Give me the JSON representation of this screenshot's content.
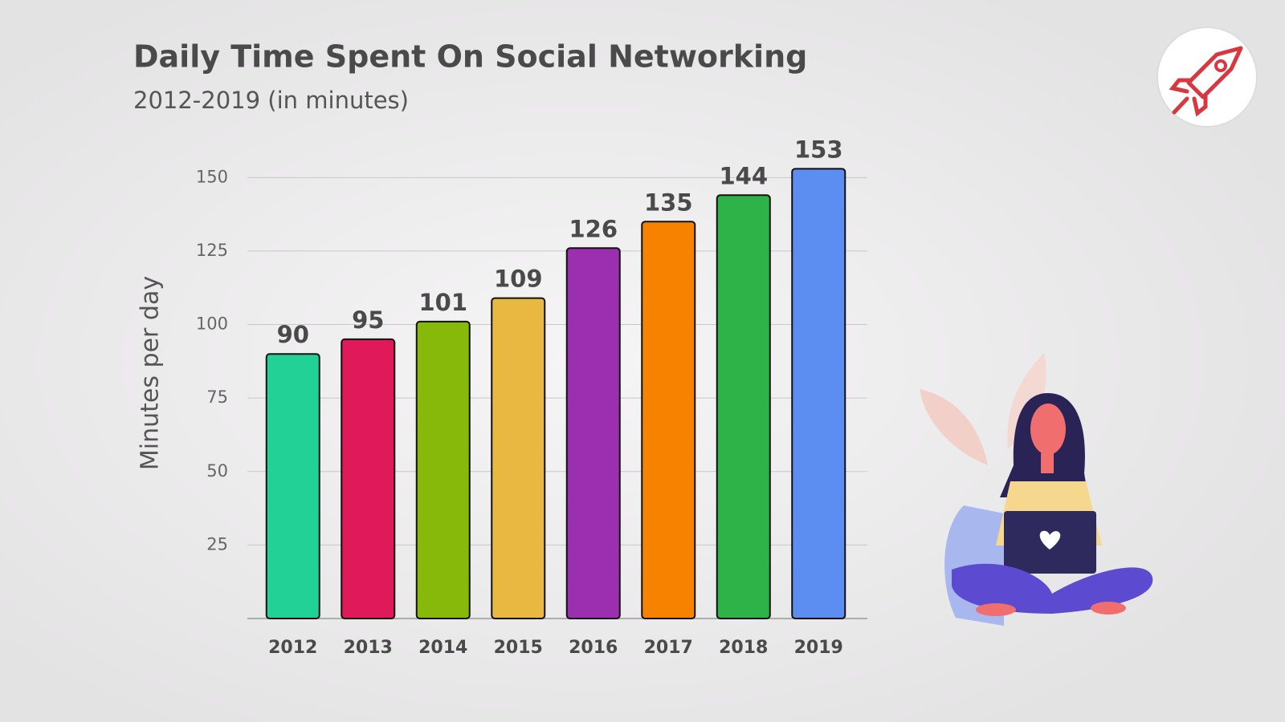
{
  "chart_data": {
    "type": "bar",
    "title": "Daily Time Spent On Social Networking",
    "subtitle": "2012-2019 (in minutes)",
    "y_label": "Minutes per day",
    "categories": [
      "2012",
      "2013",
      "2014",
      "2015",
      "2016",
      "2017",
      "2018",
      "2019"
    ],
    "values": [
      90,
      95,
      101,
      109,
      126,
      135,
      144,
      153
    ],
    "colors": [
      "#22d195",
      "#e0195a",
      "#86b90a",
      "#e8b840",
      "#9b2fb0",
      "#f78200",
      "#2db348",
      "#5b8ef0"
    ],
    "ylim": [
      0,
      155
    ],
    "yticks": [
      25,
      50,
      75,
      100,
      125,
      150
    ],
    "grid": true
  }
}
